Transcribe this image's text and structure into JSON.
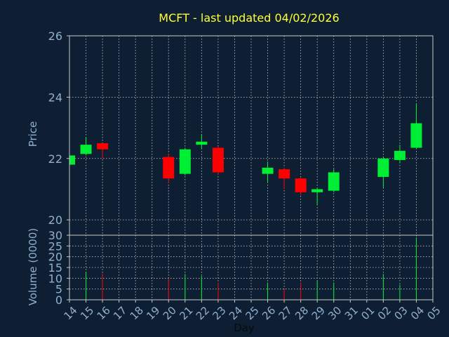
{
  "chart_data": {
    "type": "candlestick",
    "title": "MCFT - last updated 04/02/2026",
    "xlabel": "Day",
    "colors": {
      "background": "#0f1f33",
      "up": "#00ee33",
      "down": "#ff0000",
      "grid": "#c8c8c8",
      "title": "#ffff33",
      "label": "#8fb0cf"
    },
    "grid": true,
    "x_tick_labels": [
      "14",
      "15",
      "16",
      "17",
      "18",
      "19",
      "20",
      "21",
      "22",
      "23",
      "24",
      "25",
      "26",
      "27",
      "28",
      "29",
      "30",
      "31",
      "01",
      "02",
      "03",
      "04",
      "05"
    ],
    "price_panel": {
      "ylabel": "Price",
      "ylim": [
        19.5,
        26
      ],
      "yticks": [
        "20",
        "22",
        "24",
        "26"
      ],
      "ytick_values": [
        20,
        22,
        24,
        26
      ]
    },
    "volume_panel": {
      "ylabel": "Volume (0000)",
      "ylim": [
        0,
        30
      ],
      "yticks": [
        "0",
        "5",
        "10",
        "15",
        "20",
        "25",
        "30"
      ],
      "ytick_values": [
        0,
        5,
        10,
        15,
        20,
        25,
        30
      ]
    },
    "candles": [
      {
        "day": "14",
        "open": 21.8,
        "close": 22.1,
        "high": 22.15,
        "low": 21.75,
        "volume": 0
      },
      {
        "day": "15",
        "open": 22.15,
        "close": 22.45,
        "high": 22.7,
        "low": 22.1,
        "volume": 13
      },
      {
        "day": "16",
        "open": 22.5,
        "close": 22.3,
        "high": 22.5,
        "low": 22.0,
        "volume": 12
      },
      {
        "day": "20",
        "open": 22.05,
        "close": 21.35,
        "high": 22.15,
        "low": 21.2,
        "volume": 10
      },
      {
        "day": "21",
        "open": 21.5,
        "close": 22.3,
        "high": 22.35,
        "low": 21.45,
        "volume": 12
      },
      {
        "day": "22",
        "open": 22.45,
        "close": 22.55,
        "high": 22.8,
        "low": 22.3,
        "volume": 11
      },
      {
        "day": "23",
        "open": 22.35,
        "close": 21.55,
        "high": 22.4,
        "low": 21.5,
        "volume": 8
      },
      {
        "day": "26",
        "open": 21.5,
        "close": 21.7,
        "high": 21.9,
        "low": 21.2,
        "volume": 8
      },
      {
        "day": "27",
        "open": 21.65,
        "close": 21.35,
        "high": 21.7,
        "low": 21.0,
        "volume": 5
      },
      {
        "day": "28",
        "open": 21.35,
        "close": 20.9,
        "high": 21.4,
        "low": 20.8,
        "volume": 8
      },
      {
        "day": "29",
        "open": 20.9,
        "close": 21.0,
        "high": 21.05,
        "low": 20.5,
        "volume": 9
      },
      {
        "day": "30",
        "open": 20.95,
        "close": 21.55,
        "high": 21.65,
        "low": 20.9,
        "volume": 8
      },
      {
        "day": "02",
        "open": 21.4,
        "close": 22.0,
        "high": 22.05,
        "low": 21.05,
        "volume": 12
      },
      {
        "day": "03",
        "open": 21.95,
        "close": 22.25,
        "high": 22.45,
        "low": 21.85,
        "volume": 7
      },
      {
        "day": "04",
        "open": 22.35,
        "close": 23.15,
        "high": 23.8,
        "low": 22.3,
        "volume": 29
      }
    ]
  }
}
